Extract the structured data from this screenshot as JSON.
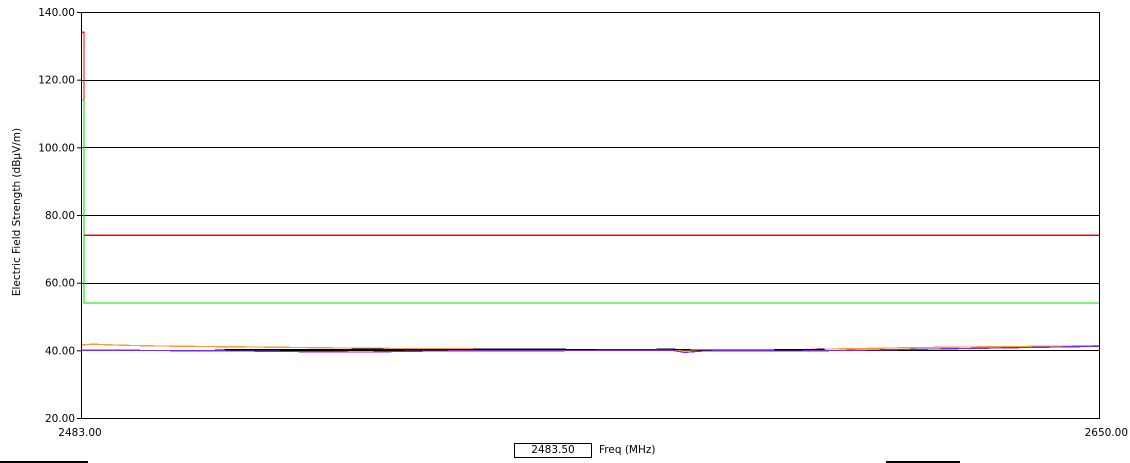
{
  "chart_data": {
    "type": "line",
    "title": "",
    "xlabel": "Freq (MHz)",
    "ylabel": "Electric Field Strength (dBµV/m)",
    "xlim": [
      2483.0,
      2650.0
    ],
    "ylim": [
      20.0,
      140.0
    ],
    "x_tick_labels": [
      "2483.00",
      "2650.00"
    ],
    "y_tick_labels": [
      "20.00",
      "40.00",
      "60.00",
      "80.00",
      "100.00",
      "120.00",
      "140.00"
    ],
    "y_ticks": [
      20,
      40,
      60,
      80,
      100,
      120,
      140
    ],
    "grid": "horizontal",
    "legend": "none",
    "series": [
      {
        "color": "#ff0000",
        "step": true,
        "x": [
          2483.0,
          2483.5,
          2483.5,
          2650.0
        ],
        "y": [
          134.0,
          134.0,
          74.0,
          74.0
        ]
      },
      {
        "color": "#00dd00",
        "step": true,
        "x": [
          2483.0,
          2483.5,
          2483.5,
          2650.0
        ],
        "y": [
          114.0,
          114.0,
          54.0,
          54.0
        ]
      },
      {
        "color": "#ff9933",
        "x": [
          2483.0,
          2485,
          2490,
          2495,
          2500,
          2510,
          2520,
          2530,
          2540,
          2550,
          2560,
          2570,
          2580,
          2590,
          2600,
          2610,
          2620,
          2630,
          2640,
          2650
        ],
        "y": [
          41.6,
          41.8,
          41.5,
          41.3,
          41.2,
          41.0,
          40.8,
          40.6,
          40.5,
          40.4,
          40.3,
          40.2,
          40.0,
          40.0,
          40.2,
          40.5,
          40.8,
          41.0,
          41.2,
          41.4
        ]
      },
      {
        "color": "#000000",
        "x": [
          2505,
          2510,
          2520,
          2530,
          2540,
          2550,
          2560,
          2570,
          2580,
          2585,
          2590,
          2600,
          2605
        ],
        "y": [
          40.1,
          40.2,
          40.2,
          40.3,
          40.2,
          40.3,
          40.3,
          40.2,
          40.3,
          40.0,
          40.0,
          40.2,
          40.3
        ]
      },
      {
        "color": "#7b2be0",
        "x": [
          2483.0,
          2490,
          2500,
          2510,
          2520,
          2530,
          2540,
          2550,
          2560,
          2570,
          2580,
          2582,
          2585,
          2590,
          2600,
          2610,
          2620,
          2630,
          2640,
          2650
        ],
        "y": [
          40.0,
          40.0,
          39.9,
          39.8,
          39.6,
          39.5,
          39.8,
          39.9,
          39.9,
          40.0,
          40.0,
          39.4,
          39.8,
          39.9,
          39.8,
          40.0,
          40.3,
          40.6,
          40.9,
          41.2
        ]
      }
    ]
  },
  "footer": {
    "marker_value": "2483.50",
    "freq_label": "Freq (MHz)"
  }
}
